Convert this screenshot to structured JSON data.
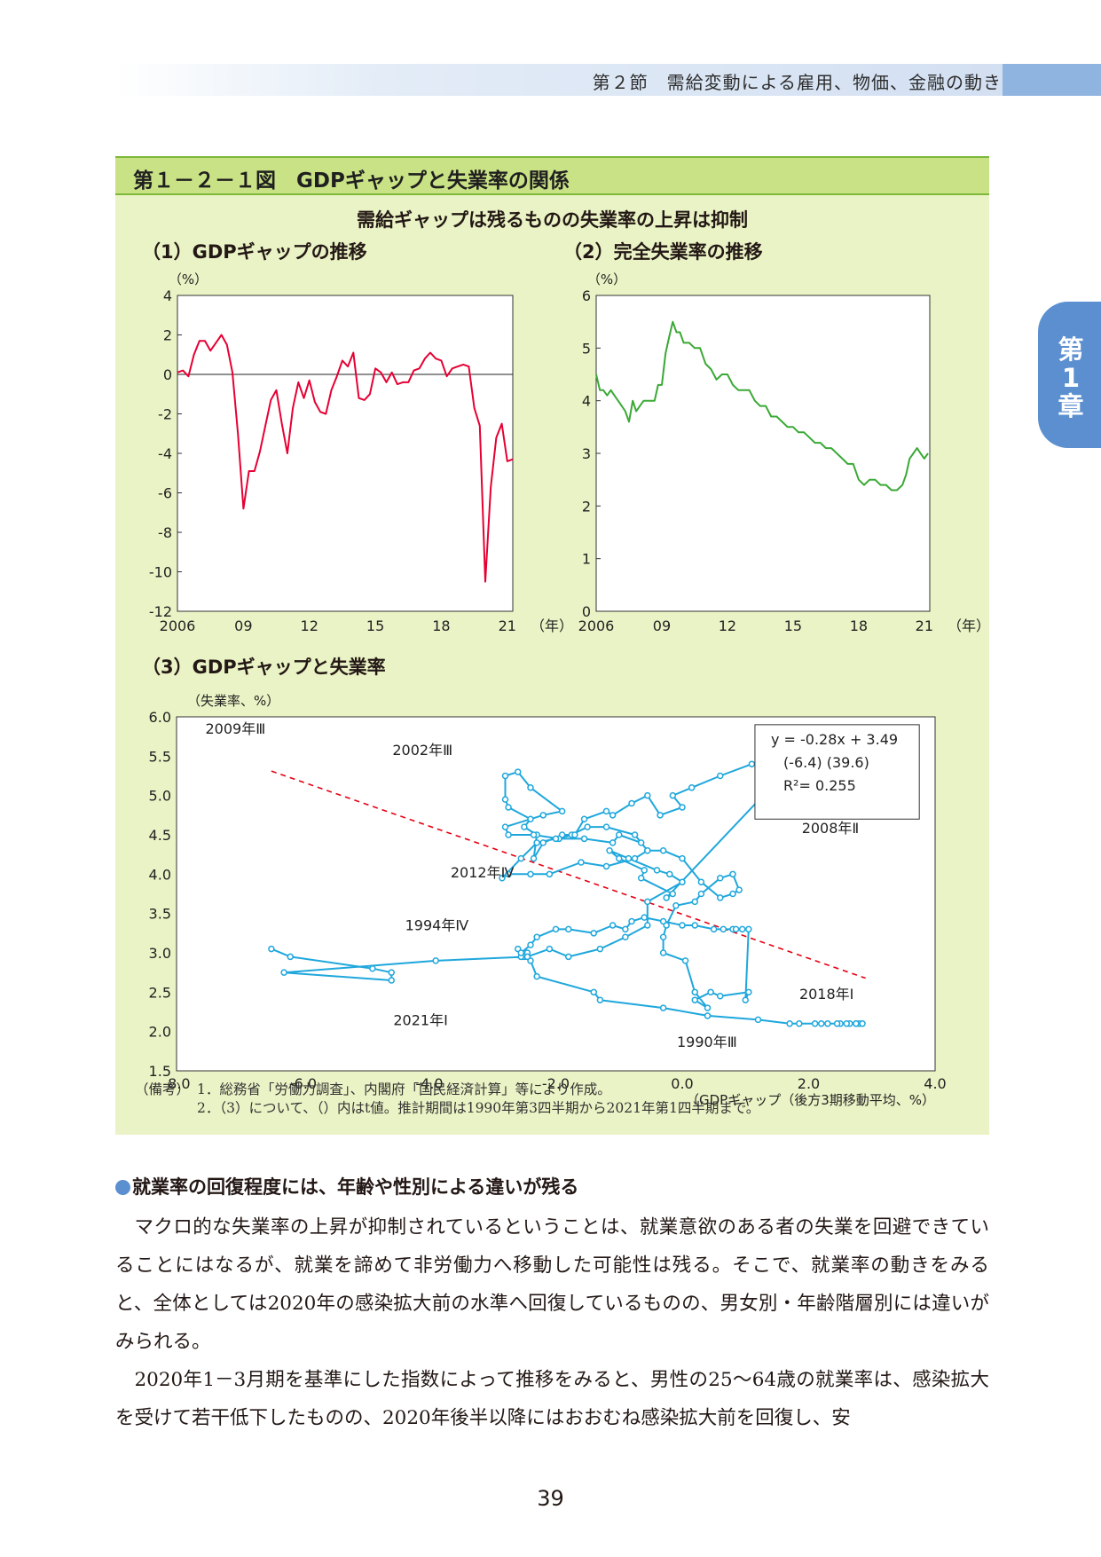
{
  "header": {
    "section": "第２節　需給変動による雇用、物価、金融の動き"
  },
  "chapter_tab": {
    "line1": "第",
    "line2": "1",
    "line3": "章"
  },
  "figure": {
    "title": "第１－２－１図　GDPギャップと失業率の関係",
    "subtitle": "需給ギャップは残るものの失業率の上昇は抑制",
    "panel1_title": "（1）GDPギャップの推移",
    "panel2_title": "（2）完全失業率の推移",
    "panel3_title": "（3）GDPギャップと失業率"
  },
  "notes": {
    "label": "（備考）",
    "line1": "1．総務省「労働力調査」、内閣府「国民経済計算」等により作成。",
    "line2": "2．（3）について、（）内はt値。推計期間は1990年第3四半期から2021年第1四半期まで。"
  },
  "section_heading": "就業率の回復程度には、年齢や性別による違いが残る",
  "paragraphs": [
    "マクロ的な失業率の上昇が抑制されているということは、就業意欲のある者の失業を回避できていることにはなるが、就業を諦めて非労働力へ移動した可能性は残る。そこで、就業率の動きをみると、全体としては2020年の感染拡大前の水準へ回復しているものの、男女別・年齢階層別には違いがみられる。",
    "2020年1－3月期を基準にした指数によって推移をみると、男性の25～64歳の就業率は、感染拡大を受けて若干低下したものの、2020年後半以降にはおおむね感染拡大前を回復し、安"
  ],
  "page_number": "39",
  "colors": {
    "gap_line": "#e60033",
    "unemp_line": "#3aa935",
    "scatter": "#1fa7dc",
    "fit_line": "#e60012",
    "fig_bg": "#eaf3c5",
    "fig_title_bg": "#c9e285"
  },
  "chart_data": [
    {
      "type": "line",
      "title": "（1）GDPギャップの推移",
      "unit_label": "（%）",
      "x_unit": "（年）",
      "x_tick_labels": [
        "2006",
        "09",
        "12",
        "15",
        "18",
        "21"
      ],
      "y_ticks": [
        4,
        2,
        0,
        -2,
        -4,
        -6,
        -8,
        -10,
        -12
      ],
      "ylim": [
        -12,
        4
      ],
      "xlim": [
        2006,
        2021.25
      ],
      "series": [
        {
          "color": "#e60033",
          "x": [
            2006.0,
            2006.25,
            2006.5,
            2006.75,
            2007.0,
            2007.25,
            2007.5,
            2007.75,
            2008.0,
            2008.25,
            2008.5,
            2008.75,
            2009.0,
            2009.25,
            2009.5,
            2009.75,
            2010.0,
            2010.25,
            2010.5,
            2010.75,
            2011.0,
            2011.25,
            2011.5,
            2011.75,
            2012.0,
            2012.25,
            2012.5,
            2012.75,
            2013.0,
            2013.25,
            2013.5,
            2013.75,
            2014.0,
            2014.25,
            2014.5,
            2014.75,
            2015.0,
            2015.25,
            2015.5,
            2015.75,
            2016.0,
            2016.25,
            2016.5,
            2016.75,
            2017.0,
            2017.25,
            2017.5,
            2017.75,
            2018.0,
            2018.25,
            2018.5,
            2018.75,
            2019.0,
            2019.25,
            2019.5,
            2019.75,
            2020.0,
            2020.25,
            2020.5,
            2020.75,
            2021.0,
            2021.25
          ],
          "y": [
            0.1,
            0.2,
            -0.1,
            1.0,
            1.7,
            1.7,
            1.2,
            1.6,
            2.0,
            1.5,
            0.1,
            -3.0,
            -6.8,
            -4.9,
            -4.9,
            -3.9,
            -2.6,
            -1.3,
            -0.8,
            -2.5,
            -4.0,
            -1.7,
            -0.4,
            -1.2,
            -0.3,
            -1.4,
            -1.9,
            -2.0,
            -0.8,
            -0.1,
            0.7,
            0.4,
            1.1,
            -1.2,
            -1.3,
            -1.0,
            0.3,
            0.1,
            -0.4,
            0.1,
            -0.5,
            -0.4,
            -0.4,
            0.2,
            0.3,
            0.8,
            1.1,
            0.8,
            0.7,
            -0.1,
            0.3,
            0.4,
            0.5,
            0.4,
            -1.7,
            -2.6,
            -10.5,
            -5.7,
            -3.2,
            -2.5,
            -4.4,
            -4.3
          ]
        }
      ]
    },
    {
      "type": "line",
      "title": "（2）完全失業率の推移",
      "unit_label": "（%）",
      "x_unit": "（年）",
      "x_tick_labels": [
        "2006",
        "09",
        "12",
        "15",
        "18",
        "21"
      ],
      "y_ticks": [
        6,
        5,
        4,
        3,
        2,
        1,
        0
      ],
      "ylim": [
        0,
        6
      ],
      "xlim": [
        2006,
        2021.25
      ],
      "series": [
        {
          "color": "#3aa935",
          "x": [
            2006.0,
            2006.17,
            2006.33,
            2006.5,
            2006.67,
            2006.83,
            2007.0,
            2007.17,
            2007.33,
            2007.5,
            2007.67,
            2007.83,
            2008.0,
            2008.17,
            2008.33,
            2008.5,
            2008.67,
            2008.83,
            2009.0,
            2009.17,
            2009.33,
            2009.5,
            2009.67,
            2009.83,
            2010.0,
            2010.25,
            2010.5,
            2010.75,
            2011.0,
            2011.25,
            2011.5,
            2011.75,
            2012.0,
            2012.25,
            2012.5,
            2012.75,
            2013.0,
            2013.25,
            2013.5,
            2013.75,
            2014.0,
            2014.25,
            2014.5,
            2014.75,
            2015.0,
            2015.25,
            2015.5,
            2015.75,
            2016.0,
            2016.25,
            2016.5,
            2016.75,
            2017.0,
            2017.25,
            2017.5,
            2017.75,
            2018.0,
            2018.25,
            2018.5,
            2018.75,
            2019.0,
            2019.25,
            2019.5,
            2019.75,
            2020.0,
            2020.17,
            2020.33,
            2020.5,
            2020.67,
            2020.83,
            2021.0,
            2021.17
          ],
          "y": [
            4.5,
            4.2,
            4.2,
            4.1,
            4.2,
            4.1,
            4.0,
            3.9,
            3.8,
            3.6,
            4.0,
            3.8,
            3.9,
            4.0,
            4.0,
            4.0,
            4.0,
            4.3,
            4.3,
            4.9,
            5.2,
            5.5,
            5.3,
            5.3,
            5.1,
            5.1,
            5.0,
            5.0,
            4.7,
            4.6,
            4.4,
            4.5,
            4.5,
            4.3,
            4.2,
            4.2,
            4.2,
            4.0,
            3.9,
            3.9,
            3.7,
            3.7,
            3.6,
            3.5,
            3.5,
            3.4,
            3.4,
            3.3,
            3.2,
            3.2,
            3.1,
            3.1,
            3.0,
            2.9,
            2.8,
            2.8,
            2.5,
            2.4,
            2.5,
            2.5,
            2.4,
            2.4,
            2.3,
            2.3,
            2.4,
            2.6,
            2.9,
            3.0,
            3.1,
            3.0,
            2.9,
            3.0
          ]
        }
      ]
    },
    {
      "type": "scatter",
      "title": "（3）GDPギャップと失業率",
      "ylabel": "（失業率、%）",
      "xlabel": "（GDPギャップ（後方3期移動平均、%）",
      "x_ticks": [
        -8.0,
        -6.0,
        -4.0,
        -2.0,
        0.0,
        2.0,
        4.0
      ],
      "x_tick_labels": [
        "-8.0",
        "-6.0",
        "-4.0",
        "-2.0",
        "0.0",
        "2.0",
        "4.0"
      ],
      "y_ticks": [
        6.0,
        5.5,
        5.0,
        4.5,
        4.0,
        3.5,
        3.0,
        2.5,
        2.0,
        1.5
      ],
      "y_tick_labels": [
        "6.0",
        "5.5",
        "5.0",
        "4.5",
        "4.0",
        "3.5",
        "3.0",
        "2.5",
        "2.0",
        "1.5"
      ],
      "xlim": [
        -8.0,
        4.0
      ],
      "ylim": [
        1.5,
        6.0
      ],
      "equation_lines": [
        "y = -0.28x + 3.49",
        "(-6.4)  (39.6)",
        "R²= 0.255"
      ],
      "fit_line": {
        "slope": -0.28,
        "intercept": 3.49,
        "x_range": [
          -6.5,
          2.9
        ]
      },
      "annotations": [
        {
          "text": "2009年Ⅲ",
          "x": -6.0,
          "y": 5.45
        },
        {
          "text": "2002年Ⅲ",
          "x": -2.9,
          "y": 5.38
        },
        {
          "text": "2008年Ⅱ",
          "x": 1.75,
          "y": 3.98
        },
        {
          "text": "2012年Ⅳ",
          "x": -1.7,
          "y": 4.14
        },
        {
          "text": "1994年Ⅳ",
          "x": -2.7,
          "y": 2.95
        },
        {
          "text": "2018年Ⅰ",
          "x": 1.15,
          "y": 2.48
        },
        {
          "text": "2021年Ⅰ",
          "x": -4.5,
          "y": 2.78
        },
        {
          "text": "1990年Ⅲ",
          "x": 1.6,
          "y": 2.12
        }
      ],
      "series": [
        {
          "color": "#1fa7dc",
          "x": [
            1.85,
            2.1,
            2.3,
            2.5,
            2.65,
            2.75,
            2.8,
            2.85,
            2.75,
            2.6,
            2.45,
            2.2,
            1.7,
            1.2,
            0.4,
            -0.3,
            -1.3,
            -1.4,
            -2.3,
            -2.4,
            -2.5,
            -2.45,
            -2.55,
            -2.6,
            -2.55,
            -2.4,
            -2.3,
            -2.0,
            -1.8,
            -1.4,
            -1.1,
            -0.9,
            -0.8,
            -0.6,
            -0.3,
            0.0,
            0.2,
            0.5,
            0.65,
            0.8,
            0.85,
            0.95,
            1.05,
            1.0,
            1.05,
            0.6,
            0.45,
            0.2,
            0.4,
            0.2,
            0.05,
            -0.3,
            -0.3,
            -0.25,
            -0.1,
            0.2,
            0.3,
            0.6,
            0.8,
            0.9,
            0.8,
            0.6,
            0.3,
            0.0,
            -0.3,
            -0.55,
            -0.75,
            -1.2,
            -1.5,
            -1.75,
            -1.9,
            -2.2,
            -2.35,
            -2.3,
            -2.5,
            -2.4,
            -2.75,
            -2.8,
            -2.8,
            -2.6,
            -2.4,
            -1.9,
            -2.2,
            -2.8,
            -2.75,
            -2.35,
            -1.95,
            -1.55,
            -1.1,
            -1.0,
            -0.65,
            -0.55,
            -0.75,
            -1.2,
            -1.6,
            -2.1,
            -2.4,
            -2.75,
            -2.85,
            -2.55,
            -2.3,
            -2.0,
            -1.7,
            -1.55,
            -1.2,
            -1.1,
            -0.8,
            -0.55,
            -0.35,
            0.0,
            -0.15,
            0.15,
            0.6,
            1.1,
            1.3,
            1.45,
            1.55,
            1.6,
            1.75,
            -0.25,
            -0.15,
            -0.65,
            -0.6,
            -1.0,
            -1.15,
            -0.85,
            -0.4,
            -0.2,
            0.0,
            -0.55,
            -0.55,
            -0.9,
            -1.3,
            -1.8,
            -2.1,
            -2.45,
            -3.9,
            -6.3,
            -4.6,
            -4.6,
            -4.9,
            -6.2,
            -6.5
          ],
          "y": [
            2.1,
            2.1,
            2.1,
            2.1,
            2.1,
            2.1,
            2.1,
            2.1,
            2.1,
            2.1,
            2.1,
            2.1,
            2.1,
            2.15,
            2.2,
            2.3,
            2.4,
            2.5,
            2.7,
            2.9,
            2.95,
            3.0,
            2.95,
            3.05,
            3.0,
            3.1,
            3.2,
            3.3,
            3.3,
            3.25,
            3.35,
            3.3,
            3.4,
            3.45,
            3.4,
            3.35,
            3.35,
            3.3,
            3.3,
            3.3,
            3.3,
            3.3,
            3.3,
            2.4,
            2.5,
            2.45,
            2.5,
            2.4,
            2.3,
            2.5,
            2.9,
            3.0,
            3.2,
            3.35,
            3.6,
            3.65,
            3.75,
            3.95,
            4.0,
            3.8,
            3.75,
            3.7,
            3.9,
            4.2,
            4.3,
            4.3,
            4.5,
            4.6,
            4.6,
            4.5,
            4.5,
            4.4,
            4.2,
            4.5,
            4.6,
            4.7,
            4.85,
            4.95,
            5.25,
            5.3,
            5.1,
            4.8,
            4.75,
            4.6,
            4.5,
            4.5,
            4.45,
            4.45,
            4.4,
            4.5,
            4.4,
            4.3,
            4.2,
            4.1,
            4.15,
            4.0,
            4.0,
            4.0,
            3.95,
            4.2,
            4.4,
            4.45,
            4.5,
            4.7,
            4.8,
            4.75,
            4.9,
            5.0,
            4.75,
            4.85,
            5.0,
            5.1,
            5.25,
            5.4,
            5.45,
            5.55,
            5.4,
            5.6,
            5.4,
            3.7,
            3.75,
            3.95,
            4.05,
            4.2,
            4.3,
            4.2,
            4.05,
            4.0,
            3.9,
            3.65,
            3.35,
            3.2,
            3.05,
            2.95,
            3.05,
            2.95,
            2.9,
            2.75,
            2.65,
            2.75,
            2.8,
            2.95,
            3.05
          ]
        }
      ]
    }
  ]
}
